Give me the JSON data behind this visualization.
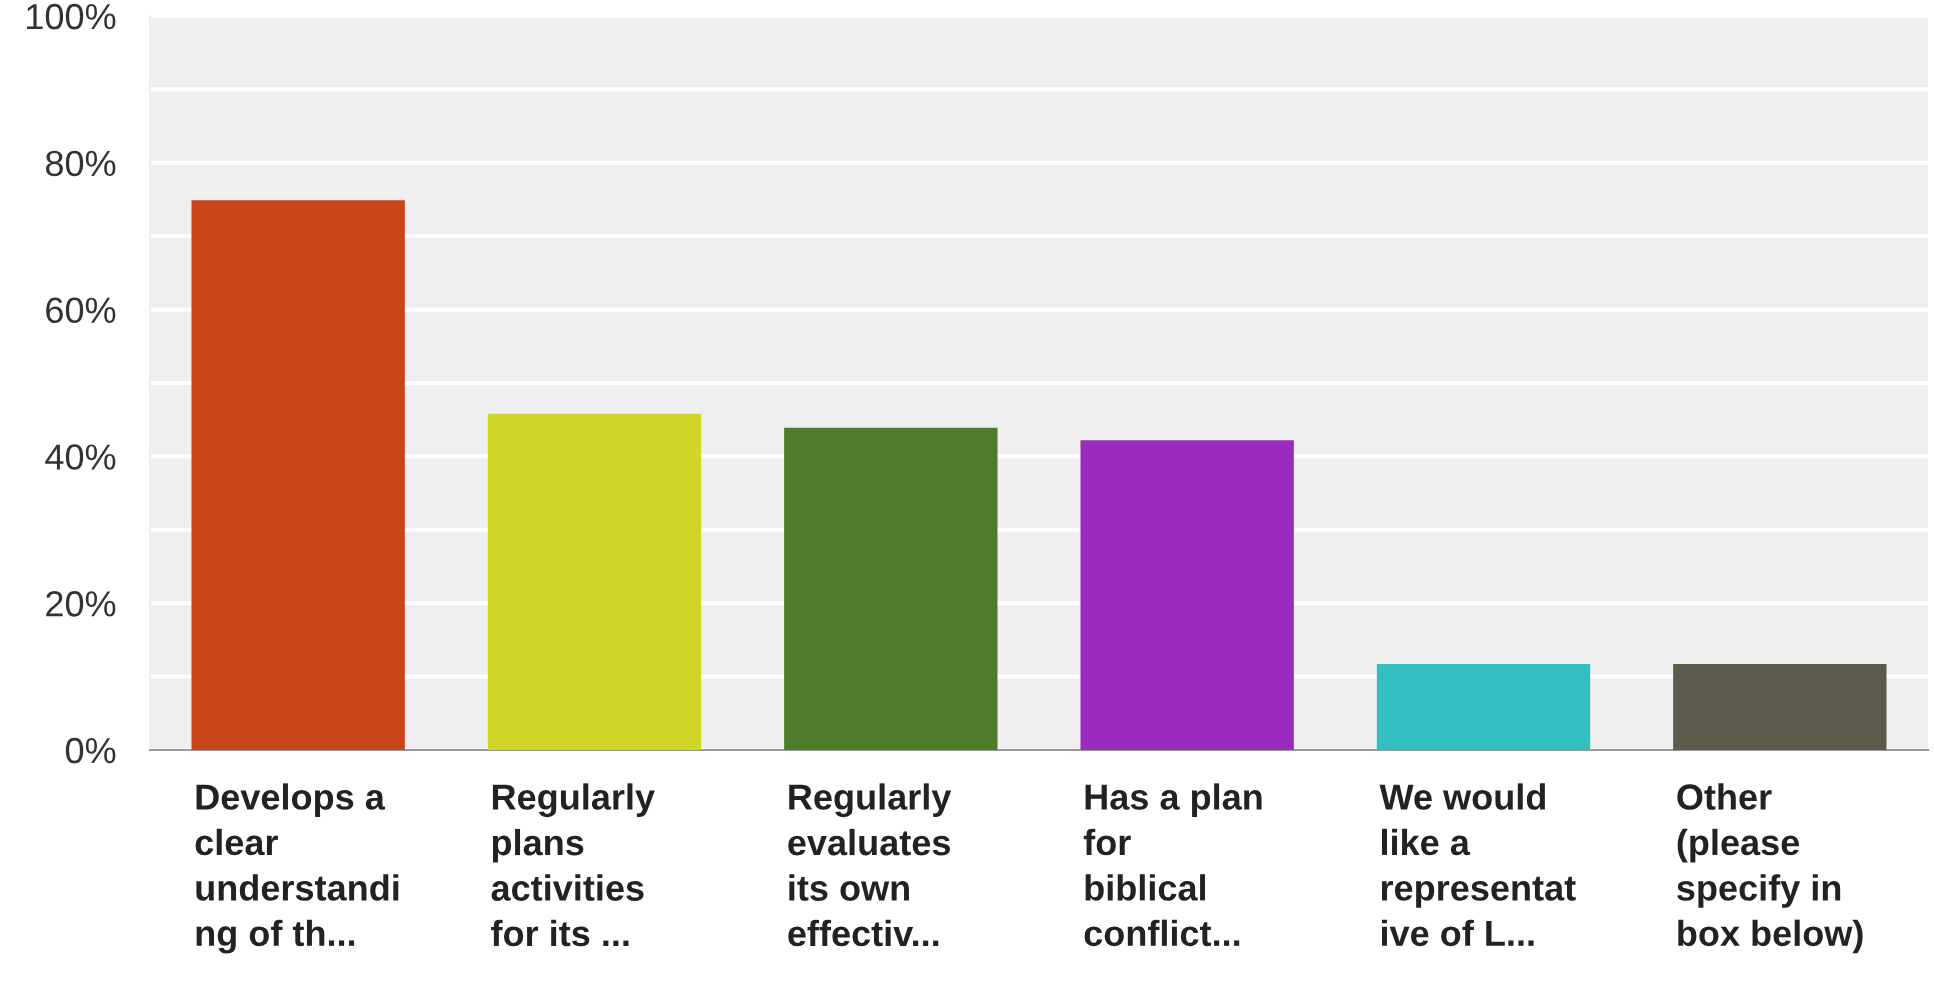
{
  "chart_data": {
    "type": "bar",
    "categories": [
      "Develops a\nclear\nunderstandi\nng of th...",
      "Regularly\nplans\nactivities\nfor its ...",
      "Regularly\nevaluates\nits own\neffectiv...",
      "Has a plan\nfor\nbiblical\nconflict...",
      "We would\nlike a\nrepresentat\nive of L...",
      "Other\n(please\nspecify in\nbox below)"
    ],
    "values": [
      74.9,
      45.8,
      43.9,
      42.2,
      11.7,
      11.7
    ],
    "colors": [
      "#c9461b",
      "#cfd628",
      "#4e7c2a",
      "#9a2bbd",
      "#33bfc0",
      "#5c5a4a"
    ],
    "ylim": [
      0,
      100
    ],
    "yticks": [
      {
        "value": 0,
        "label": "0%"
      },
      {
        "value": 10,
        "label": null
      },
      {
        "value": 20,
        "label": "20%"
      },
      {
        "value": 30,
        "label": null
      },
      {
        "value": 40,
        "label": "40%"
      },
      {
        "value": 50,
        "label": null
      },
      {
        "value": 60,
        "label": "60%"
      },
      {
        "value": 70,
        "label": null
      },
      {
        "value": 80,
        "label": "80%"
      },
      {
        "value": 90,
        "label": null
      },
      {
        "value": 100,
        "label": "100%"
      }
    ],
    "grid": "y"
  }
}
